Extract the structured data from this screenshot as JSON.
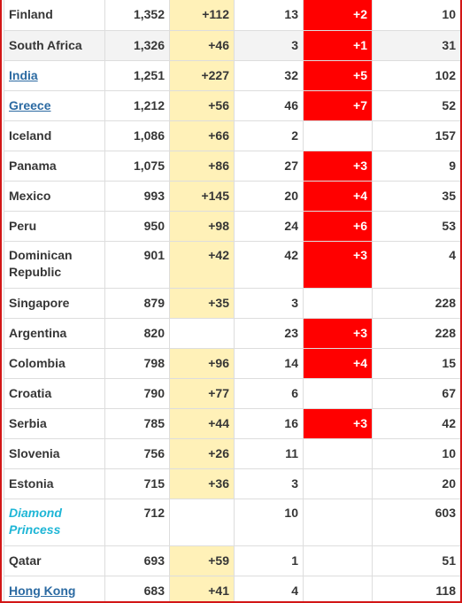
{
  "colors": {
    "new_cases_bg": "#fff1b8",
    "new_deaths_bg": "#ff0000",
    "link": "#2b6aa2",
    "diamond_princess": "#1fb6d6",
    "frame": "#d21616"
  },
  "rows": [
    {
      "country": "Finland",
      "total_cases": "1,352",
      "new_cases": "+112",
      "total_deaths": "13",
      "new_deaths": "+2",
      "total_recovered": "10"
    },
    {
      "country": "South Africa",
      "total_cases": "1,326",
      "new_cases": "+46",
      "total_deaths": "3",
      "new_deaths": "+1",
      "total_recovered": "31"
    },
    {
      "country": "India",
      "total_cases": "1,251",
      "new_cases": "+227",
      "total_deaths": "32",
      "new_deaths": "+5",
      "total_recovered": "102"
    },
    {
      "country": "Greece",
      "total_cases": "1,212",
      "new_cases": "+56",
      "total_deaths": "46",
      "new_deaths": "+7",
      "total_recovered": "52"
    },
    {
      "country": "Iceland",
      "total_cases": "1,086",
      "new_cases": "+66",
      "total_deaths": "2",
      "new_deaths": "",
      "total_recovered": "157"
    },
    {
      "country": "Panama",
      "total_cases": "1,075",
      "new_cases": "+86",
      "total_deaths": "27",
      "new_deaths": "+3",
      "total_recovered": "9"
    },
    {
      "country": "Mexico",
      "total_cases": "993",
      "new_cases": "+145",
      "total_deaths": "20",
      "new_deaths": "+4",
      "total_recovered": "35"
    },
    {
      "country": "Peru",
      "total_cases": "950",
      "new_cases": "+98",
      "total_deaths": "24",
      "new_deaths": "+6",
      "total_recovered": "53"
    },
    {
      "country_line1": "Dominican",
      "country_line2": "Republic",
      "total_cases": "901",
      "new_cases": "+42",
      "total_deaths": "42",
      "new_deaths": "+3",
      "total_recovered": "4"
    },
    {
      "country": "Singapore",
      "total_cases": "879",
      "new_cases": "+35",
      "total_deaths": "3",
      "new_deaths": "",
      "total_recovered": "228"
    },
    {
      "country": "Argentina",
      "total_cases": "820",
      "new_cases": "",
      "total_deaths": "23",
      "new_deaths": "+3",
      "total_recovered": "228"
    },
    {
      "country": "Colombia",
      "total_cases": "798",
      "new_cases": "+96",
      "total_deaths": "14",
      "new_deaths": "+4",
      "total_recovered": "15"
    },
    {
      "country": "Croatia",
      "total_cases": "790",
      "new_cases": "+77",
      "total_deaths": "6",
      "new_deaths": "",
      "total_recovered": "67"
    },
    {
      "country": "Serbia",
      "total_cases": "785",
      "new_cases": "+44",
      "total_deaths": "16",
      "new_deaths": "+3",
      "total_recovered": "42"
    },
    {
      "country": "Slovenia",
      "total_cases": "756",
      "new_cases": "+26",
      "total_deaths": "11",
      "new_deaths": "",
      "total_recovered": "10"
    },
    {
      "country": "Estonia",
      "total_cases": "715",
      "new_cases": "+36",
      "total_deaths": "3",
      "new_deaths": "",
      "total_recovered": "20"
    },
    {
      "country_line1": "Diamond",
      "country_line2": "Princess",
      "total_cases": "712",
      "new_cases": "",
      "total_deaths": "10",
      "new_deaths": "",
      "total_recovered": "603"
    },
    {
      "country": "Qatar",
      "total_cases": "693",
      "new_cases": "+59",
      "total_deaths": "1",
      "new_deaths": "",
      "total_recovered": "51"
    },
    {
      "country": "Hong Kong",
      "total_cases": "683",
      "new_cases": "+41",
      "total_deaths": "4",
      "new_deaths": "",
      "total_recovered": "118"
    }
  ]
}
